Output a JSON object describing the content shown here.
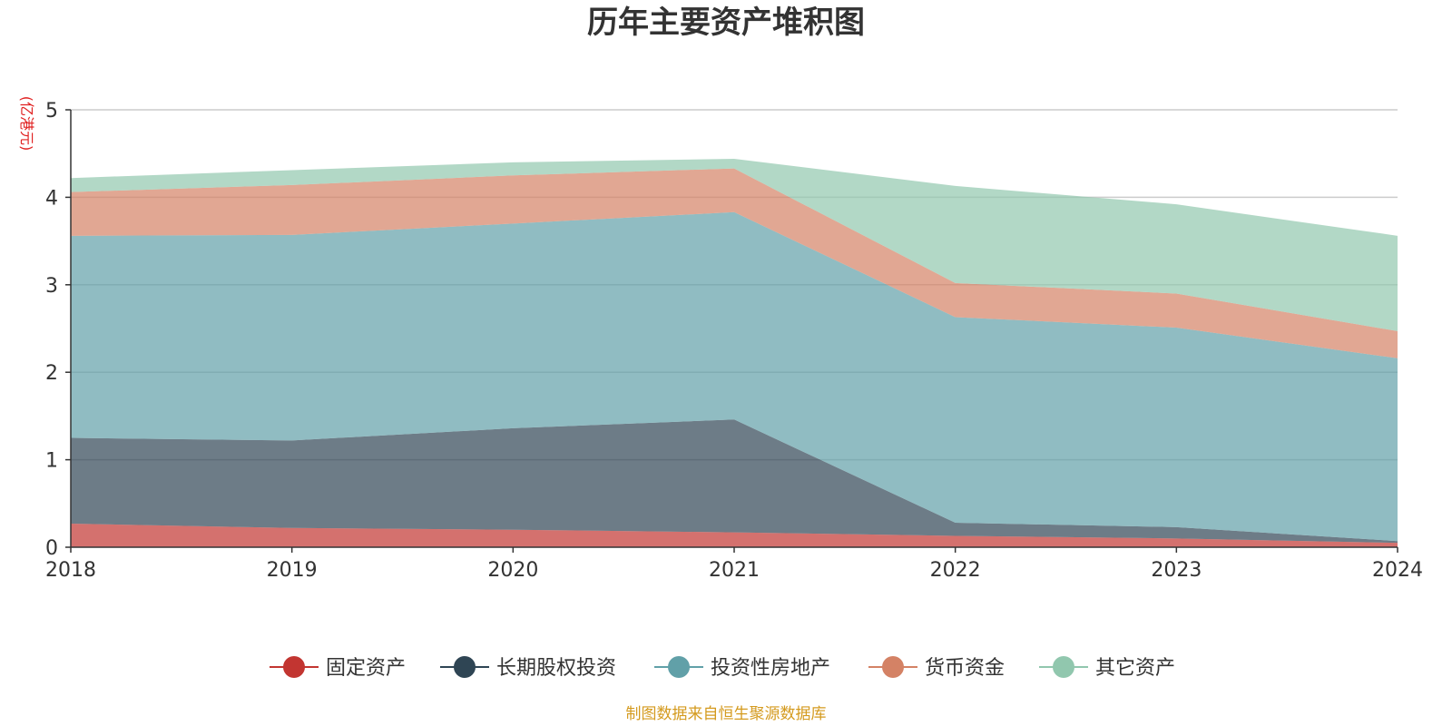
{
  "chart_data": {
    "type": "area",
    "stacked": true,
    "title": "历年主要资产堆积图",
    "ylabel": "(亿港元)",
    "x": [
      "2018",
      "2019",
      "2020",
      "2021",
      "2022",
      "2023",
      "2024"
    ],
    "ylim": [
      0,
      5
    ],
    "yticks": [
      "0",
      "1",
      "2",
      "3",
      "4",
      "5"
    ],
    "grid": true,
    "legend_position": "bottom",
    "series": [
      {
        "name": "固定资产",
        "color": "#c23531",
        "values": [
          0.27,
          0.22,
          0.2,
          0.17,
          0.13,
          0.1,
          0.05
        ]
      },
      {
        "name": "长期股权投资",
        "color": "#2f4554",
        "values": [
          0.98,
          1.0,
          1.16,
          1.29,
          0.15,
          0.13,
          0.02
        ]
      },
      {
        "name": "投资性房地产",
        "color": "#61a0a8",
        "values": [
          2.31,
          2.35,
          2.34,
          2.37,
          2.35,
          2.28,
          2.09
        ]
      },
      {
        "name": "货币资金",
        "color": "#d48265",
        "values": [
          0.5,
          0.57,
          0.55,
          0.5,
          0.39,
          0.39,
          0.31
        ]
      },
      {
        "name": "其它资产",
        "color": "#91c7ae",
        "values": [
          0.16,
          0.17,
          0.15,
          0.11,
          1.11,
          1.02,
          1.09
        ]
      }
    ],
    "source": "制图数据来自恒生聚源数据库"
  }
}
